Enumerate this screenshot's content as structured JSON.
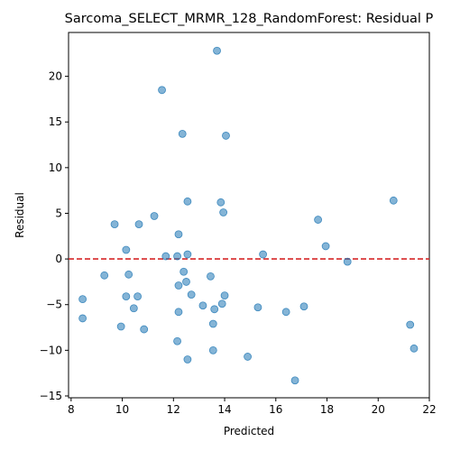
{
  "chart_data": {
    "type": "scatter",
    "title": "Sarcoma_SELECT_MRMR_128_RandomForest: Residual P",
    "xlabel": "Predicted",
    "ylabel": "Residual",
    "xlim": [
      7.9,
      22
    ],
    "ylim": [
      -15.2,
      24.8
    ],
    "xticks": [
      8,
      10,
      12,
      14,
      16,
      18,
      20,
      22
    ],
    "yticks": [
      -15,
      -10,
      -5,
      0,
      5,
      10,
      15,
      20
    ],
    "reference_line": {
      "y": 0,
      "style": "dashed",
      "color": "#d62728"
    },
    "marker_color": "#1f77b4",
    "marker_alpha": 0.55,
    "grid": false,
    "points": [
      [
        13.7,
        22.8
      ],
      [
        11.55,
        18.5
      ],
      [
        12.35,
        13.7
      ],
      [
        14.05,
        13.5
      ],
      [
        20.6,
        6.4
      ],
      [
        12.55,
        6.3
      ],
      [
        13.85,
        6.2
      ],
      [
        13.95,
        5.1
      ],
      [
        11.25,
        4.7
      ],
      [
        17.65,
        4.3
      ],
      [
        9.7,
        3.8
      ],
      [
        10.65,
        3.8
      ],
      [
        12.2,
        2.7
      ],
      [
        17.95,
        1.4
      ],
      [
        10.15,
        1.0
      ],
      [
        11.7,
        0.3
      ],
      [
        12.15,
        0.3
      ],
      [
        12.55,
        0.5
      ],
      [
        15.5,
        0.5
      ],
      [
        18.8,
        -0.3
      ],
      [
        9.3,
        -1.8
      ],
      [
        10.25,
        -1.7
      ],
      [
        12.4,
        -1.4
      ],
      [
        13.45,
        -1.9
      ],
      [
        12.5,
        -2.5
      ],
      [
        12.2,
        -2.9
      ],
      [
        12.7,
        -3.9
      ],
      [
        14.0,
        -4.0
      ],
      [
        8.45,
        -4.4
      ],
      [
        10.15,
        -4.1
      ],
      [
        10.6,
        -4.1
      ],
      [
        13.15,
        -5.1
      ],
      [
        13.9,
        -4.9
      ],
      [
        13.6,
        -5.5
      ],
      [
        15.3,
        -5.3
      ],
      [
        17.1,
        -5.2
      ],
      [
        10.45,
        -5.4
      ],
      [
        12.2,
        -5.8
      ],
      [
        16.4,
        -5.8
      ],
      [
        8.45,
        -6.5
      ],
      [
        13.55,
        -7.1
      ],
      [
        21.25,
        -7.2
      ],
      [
        9.95,
        -7.4
      ],
      [
        10.85,
        -7.7
      ],
      [
        12.15,
        -9.0
      ],
      [
        13.55,
        -10.0
      ],
      [
        21.4,
        -9.8
      ],
      [
        14.9,
        -10.7
      ],
      [
        12.55,
        -11.0
      ],
      [
        16.75,
        -13.3
      ]
    ]
  }
}
